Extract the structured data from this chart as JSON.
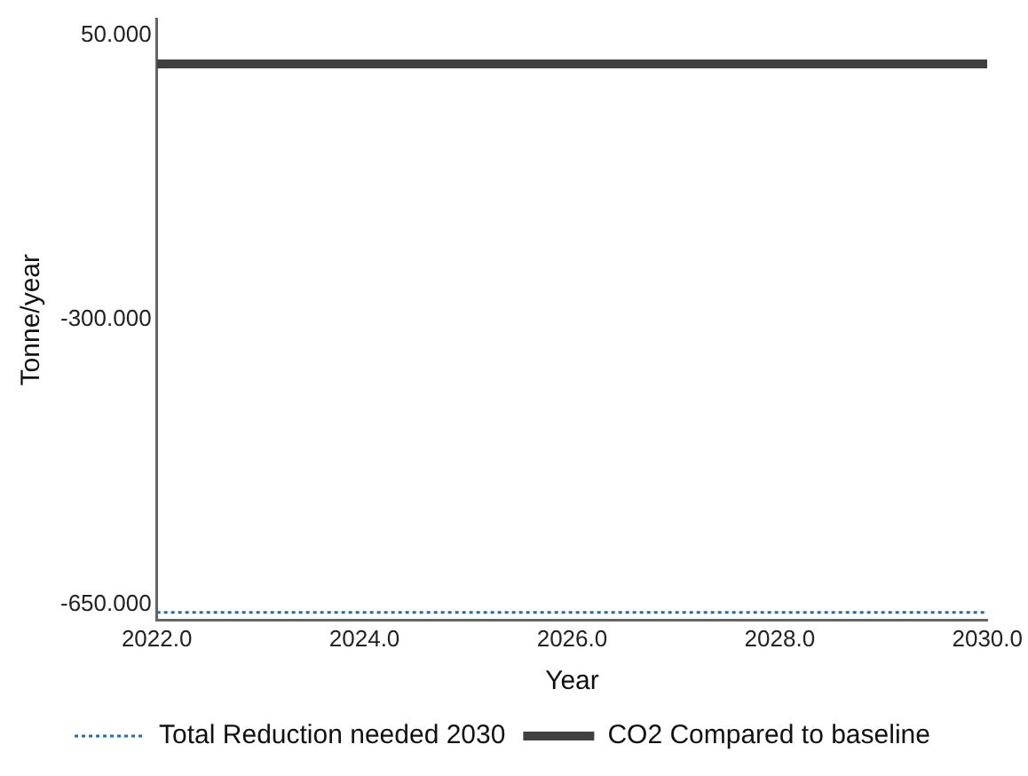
{
  "chart_data": {
    "type": "line",
    "xlabel": "Year",
    "ylabel": "Tonne/year",
    "xlim": [
      2022,
      2030
    ],
    "xticks": [
      {
        "value": 2022,
        "label": "2022.0"
      },
      {
        "value": 2024,
        "label": "2024.0"
      },
      {
        "value": 2026,
        "label": "2026.0"
      },
      {
        "value": 2028,
        "label": "2028.0"
      },
      {
        "value": 2030,
        "label": "2030.0"
      }
    ],
    "ylim": [
      -670,
      70
    ],
    "yticks": [
      {
        "value": -650,
        "label": "-650.000"
      },
      {
        "value": -300,
        "label": "-300.000"
      },
      {
        "value": 50,
        "label": "50.000"
      }
    ],
    "grid": false,
    "legend": "bottom",
    "marker": "none",
    "x": [
      2022,
      2030
    ],
    "series": [
      {
        "name": "Total Reduction needed 2030",
        "color": "#1f6cb0",
        "line_style": "dotted",
        "values": [
          -660,
          -660
        ]
      },
      {
        "name": "CO2 Compared to baseline",
        "color": "#404040",
        "line_style": "solid",
        "values": [
          15,
          15
        ]
      }
    ]
  }
}
